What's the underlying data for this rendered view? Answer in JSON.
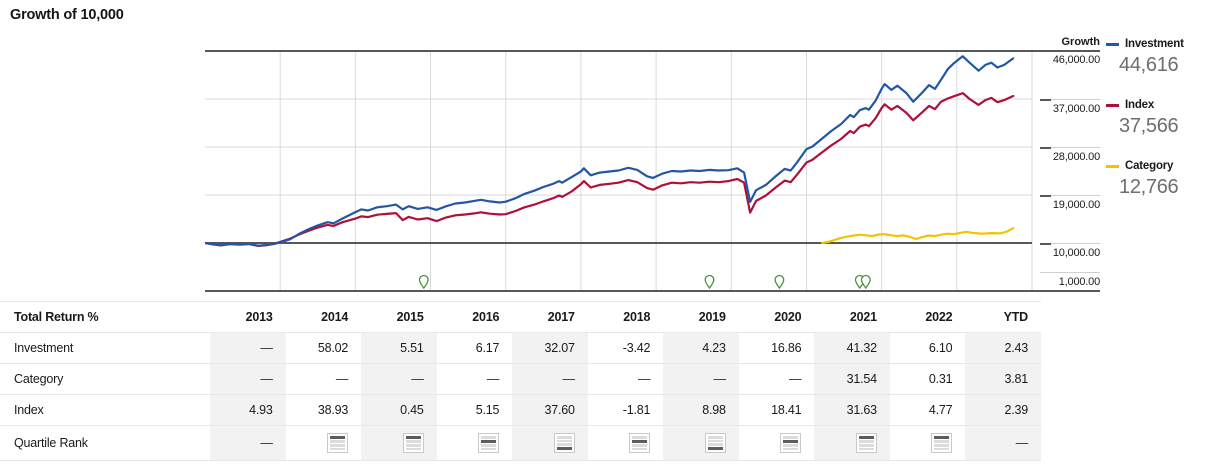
{
  "title": "Growth of 10,000",
  "colors": {
    "investment": "#2356a4",
    "index": "#ad1038",
    "category": "#f2c400",
    "event_pin": "#4b9336",
    "grid_light": "#d9d9d9",
    "grid_dark": "#57585a",
    "col_shade": "#f2f2f2",
    "legend_value_text": "#6e6e6e"
  },
  "chart_data": {
    "type": "line",
    "title": "Growth of 10,000",
    "y_axis": {
      "title": "Growth",
      "range": [
        1000,
        46000
      ],
      "gridline_step": 9000,
      "ticks": [
        {
          "label": "46,000.00",
          "value": 46000
        },
        {
          "label": "37,000.00",
          "value": 37000
        },
        {
          "label": "28,000.00",
          "value": 28000
        },
        {
          "label": "19,000.00",
          "value": 19000
        },
        {
          "label": "10,000.00",
          "value": 10000
        },
        {
          "label": "1,000.00",
          "value": 1000
        }
      ],
      "dark_levels": [
        46000,
        10000,
        1000
      ]
    },
    "x_axis": {
      "start": 2013,
      "end": 2024,
      "gridline_years": [
        2014,
        2015,
        2016,
        2017,
        2018,
        2019,
        2020,
        2021,
        2022,
        2023,
        2024
      ]
    },
    "event_markers": {
      "years": [
        2015.91,
        2019.71,
        2020.64,
        2021.71,
        2021.79
      ]
    },
    "series": [
      {
        "name": "Investment",
        "color_key": "investment",
        "end_value_label": "44,616",
        "points": [
          [
            2013.0,
            10000
          ],
          [
            2013.08,
            9850
          ],
          [
            2013.21,
            9600
          ],
          [
            2013.33,
            9850
          ],
          [
            2013.46,
            9750
          ],
          [
            2013.58,
            9850
          ],
          [
            2013.71,
            9500
          ],
          [
            2013.83,
            9650
          ],
          [
            2013.92,
            9850
          ],
          [
            2014.0,
            10100
          ],
          [
            2014.13,
            10700
          ],
          [
            2014.25,
            11700
          ],
          [
            2014.38,
            12600
          ],
          [
            2014.5,
            13300
          ],
          [
            2014.63,
            13900
          ],
          [
            2014.71,
            13700
          ],
          [
            2014.83,
            14600
          ],
          [
            2015.0,
            15800
          ],
          [
            2015.08,
            16300
          ],
          [
            2015.17,
            16100
          ],
          [
            2015.29,
            16700
          ],
          [
            2015.42,
            16900
          ],
          [
            2015.54,
            17200
          ],
          [
            2015.63,
            16300
          ],
          [
            2015.71,
            16900
          ],
          [
            2015.83,
            16400
          ],
          [
            2015.96,
            16700
          ],
          [
            2016.08,
            16200
          ],
          [
            2016.21,
            16900
          ],
          [
            2016.33,
            17400
          ],
          [
            2016.46,
            17600
          ],
          [
            2016.58,
            17900
          ],
          [
            2016.67,
            18100
          ],
          [
            2016.79,
            17800
          ],
          [
            2016.92,
            17600
          ],
          [
            2017.0,
            17750
          ],
          [
            2017.13,
            18400
          ],
          [
            2017.25,
            19200
          ],
          [
            2017.38,
            19800
          ],
          [
            2017.5,
            20500
          ],
          [
            2017.63,
            21100
          ],
          [
            2017.71,
            21600
          ],
          [
            2017.75,
            21300
          ],
          [
            2017.88,
            22400
          ],
          [
            2018.0,
            23400
          ],
          [
            2018.04,
            24000
          ],
          [
            2018.13,
            22700
          ],
          [
            2018.25,
            23200
          ],
          [
            2018.38,
            23400
          ],
          [
            2018.5,
            23600
          ],
          [
            2018.63,
            24100
          ],
          [
            2018.75,
            23700
          ],
          [
            2018.88,
            22500
          ],
          [
            2018.96,
            22200
          ],
          [
            2019.08,
            23000
          ],
          [
            2019.21,
            23500
          ],
          [
            2019.33,
            23400
          ],
          [
            2019.46,
            23600
          ],
          [
            2019.58,
            23500
          ],
          [
            2019.71,
            23700
          ],
          [
            2019.83,
            23600
          ],
          [
            2019.96,
            23650
          ],
          [
            2020.08,
            24000
          ],
          [
            2020.17,
            23200
          ],
          [
            2020.25,
            17700
          ],
          [
            2020.33,
            19900
          ],
          [
            2020.46,
            20900
          ],
          [
            2020.58,
            22400
          ],
          [
            2020.71,
            23900
          ],
          [
            2020.79,
            23600
          ],
          [
            2020.88,
            25200
          ],
          [
            2021.0,
            27600
          ],
          [
            2021.08,
            28100
          ],
          [
            2021.21,
            29600
          ],
          [
            2021.33,
            31000
          ],
          [
            2021.46,
            32300
          ],
          [
            2021.58,
            34000
          ],
          [
            2021.63,
            33600
          ],
          [
            2021.71,
            34900
          ],
          [
            2021.79,
            35300
          ],
          [
            2021.83,
            35000
          ],
          [
            2021.92,
            36700
          ],
          [
            2022.0,
            38900
          ],
          [
            2022.04,
            39800
          ],
          [
            2022.13,
            38700
          ],
          [
            2022.21,
            39500
          ],
          [
            2022.33,
            38100
          ],
          [
            2022.42,
            36500
          ],
          [
            2022.54,
            38200
          ],
          [
            2022.63,
            39600
          ],
          [
            2022.71,
            38900
          ],
          [
            2022.79,
            40600
          ],
          [
            2022.88,
            42600
          ],
          [
            2022.96,
            43700
          ],
          [
            2023.04,
            44600
          ],
          [
            2023.08,
            45000
          ],
          [
            2023.17,
            43800
          ],
          [
            2023.29,
            42300
          ],
          [
            2023.38,
            43400
          ],
          [
            2023.46,
            43800
          ],
          [
            2023.54,
            42900
          ],
          [
            2023.63,
            43400
          ],
          [
            2023.75,
            44616
          ]
        ]
      },
      {
        "name": "Index",
        "color_key": "index",
        "end_value_label": "37,566",
        "points": [
          [
            2013.0,
            10000
          ],
          [
            2013.08,
            9800
          ],
          [
            2013.21,
            9550
          ],
          [
            2013.33,
            9800
          ],
          [
            2013.46,
            9700
          ],
          [
            2013.58,
            9800
          ],
          [
            2013.71,
            9450
          ],
          [
            2013.83,
            9600
          ],
          [
            2013.92,
            9850
          ],
          [
            2014.0,
            10200
          ],
          [
            2014.13,
            10800
          ],
          [
            2014.25,
            11600
          ],
          [
            2014.38,
            12300
          ],
          [
            2014.5,
            12900
          ],
          [
            2014.63,
            13400
          ],
          [
            2014.71,
            13200
          ],
          [
            2014.83,
            13900
          ],
          [
            2015.0,
            14580
          ],
          [
            2015.08,
            15000
          ],
          [
            2015.17,
            14850
          ],
          [
            2015.29,
            15300
          ],
          [
            2015.42,
            15450
          ],
          [
            2015.54,
            15600
          ],
          [
            2015.63,
            14300
          ],
          [
            2015.71,
            14900
          ],
          [
            2015.83,
            14400
          ],
          [
            2015.96,
            14650
          ],
          [
            2016.08,
            14100
          ],
          [
            2016.21,
            14800
          ],
          [
            2016.33,
            15200
          ],
          [
            2016.46,
            15350
          ],
          [
            2016.58,
            15550
          ],
          [
            2016.67,
            15750
          ],
          [
            2016.79,
            15500
          ],
          [
            2016.92,
            15350
          ],
          [
            2017.0,
            15400
          ],
          [
            2017.13,
            16000
          ],
          [
            2017.25,
            16700
          ],
          [
            2017.38,
            17200
          ],
          [
            2017.5,
            17800
          ],
          [
            2017.63,
            18400
          ],
          [
            2017.71,
            18900
          ],
          [
            2017.75,
            18650
          ],
          [
            2017.88,
            19700
          ],
          [
            2018.0,
            21000
          ],
          [
            2018.04,
            21600
          ],
          [
            2018.13,
            20400
          ],
          [
            2018.25,
            20900
          ],
          [
            2018.38,
            21100
          ],
          [
            2018.5,
            21300
          ],
          [
            2018.63,
            21800
          ],
          [
            2018.75,
            21400
          ],
          [
            2018.88,
            20300
          ],
          [
            2018.96,
            20000
          ],
          [
            2019.08,
            20800
          ],
          [
            2019.21,
            21300
          ],
          [
            2019.33,
            21200
          ],
          [
            2019.46,
            21400
          ],
          [
            2019.58,
            21300
          ],
          [
            2019.71,
            21500
          ],
          [
            2019.83,
            21400
          ],
          [
            2019.96,
            21600
          ],
          [
            2020.08,
            22000
          ],
          [
            2020.17,
            21300
          ],
          [
            2020.25,
            15700
          ],
          [
            2020.33,
            17900
          ],
          [
            2020.46,
            18900
          ],
          [
            2020.58,
            20300
          ],
          [
            2020.71,
            21700
          ],
          [
            2020.79,
            21400
          ],
          [
            2020.88,
            22900
          ],
          [
            2021.0,
            25100
          ],
          [
            2021.08,
            25600
          ],
          [
            2021.21,
            27000
          ],
          [
            2021.33,
            28300
          ],
          [
            2021.46,
            29500
          ],
          [
            2021.58,
            31000
          ],
          [
            2021.63,
            30600
          ],
          [
            2021.71,
            31800
          ],
          [
            2021.79,
            32200
          ],
          [
            2021.83,
            31900
          ],
          [
            2021.92,
            33400
          ],
          [
            2022.0,
            35300
          ],
          [
            2022.04,
            36000
          ],
          [
            2022.13,
            35000
          ],
          [
            2022.21,
            35700
          ],
          [
            2022.33,
            34400
          ],
          [
            2022.42,
            33000
          ],
          [
            2022.54,
            34500
          ],
          [
            2022.63,
            35700
          ],
          [
            2022.71,
            35100
          ],
          [
            2022.79,
            36500
          ],
          [
            2022.88,
            37100
          ],
          [
            2022.96,
            37500
          ],
          [
            2023.04,
            37900
          ],
          [
            2023.08,
            38100
          ],
          [
            2023.17,
            37000
          ],
          [
            2023.29,
            35900
          ],
          [
            2023.38,
            36800
          ],
          [
            2023.46,
            37200
          ],
          [
            2023.54,
            36400
          ],
          [
            2023.63,
            36800
          ],
          [
            2023.75,
            37566
          ]
        ]
      },
      {
        "name": "Category",
        "color_key": "category",
        "end_value_label": "12,766",
        "points": [
          [
            2021.21,
            10000
          ],
          [
            2021.29,
            10200
          ],
          [
            2021.38,
            10600
          ],
          [
            2021.46,
            10950
          ],
          [
            2021.54,
            11200
          ],
          [
            2021.63,
            11400
          ],
          [
            2021.71,
            11550
          ],
          [
            2021.79,
            11450
          ],
          [
            2021.88,
            11300
          ],
          [
            2021.96,
            11600
          ],
          [
            2022.04,
            11650
          ],
          [
            2022.13,
            11450
          ],
          [
            2022.21,
            11300
          ],
          [
            2022.29,
            11450
          ],
          [
            2022.38,
            11100
          ],
          [
            2022.46,
            10750
          ],
          [
            2022.54,
            11100
          ],
          [
            2022.63,
            11400
          ],
          [
            2022.71,
            11300
          ],
          [
            2022.79,
            11550
          ],
          [
            2022.88,
            11750
          ],
          [
            2022.96,
            11650
          ],
          [
            2023.04,
            11900
          ],
          [
            2023.13,
            12100
          ],
          [
            2023.21,
            11900
          ],
          [
            2023.33,
            11750
          ],
          [
            2023.46,
            11850
          ],
          [
            2023.58,
            11800
          ],
          [
            2023.67,
            12150
          ],
          [
            2023.75,
            12766
          ]
        ]
      }
    ]
  },
  "table": {
    "header_label": "Total Return %",
    "columns": [
      "2013",
      "2014",
      "2015",
      "2016",
      "2017",
      "2018",
      "2019",
      "2020",
      "2021",
      "2022",
      "YTD"
    ],
    "shaded_columns": [
      0,
      2,
      4,
      6,
      8,
      10
    ],
    "rows": [
      {
        "label": "Investment",
        "type": "values",
        "values": [
          "—",
          "58.02",
          "5.51",
          "6.17",
          "32.07",
          "-3.42",
          "4.23",
          "16.86",
          "41.32",
          "6.10",
          "2.43"
        ]
      },
      {
        "label": "Category",
        "type": "values",
        "values": [
          "—",
          "—",
          "—",
          "—",
          "—",
          "—",
          "—",
          "—",
          "31.54",
          "0.31",
          "3.81"
        ]
      },
      {
        "label": "Index",
        "type": "values",
        "values": [
          "4.93",
          "38.93",
          "0.45",
          "5.15",
          "37.60",
          "-1.81",
          "8.98",
          "18.41",
          "31.63",
          "4.77",
          "2.39"
        ]
      },
      {
        "label": "Quartile Rank",
        "type": "quartile",
        "values": [
          "—",
          1,
          1,
          2,
          4,
          2,
          4,
          2,
          1,
          1,
          "—"
        ]
      }
    ]
  }
}
